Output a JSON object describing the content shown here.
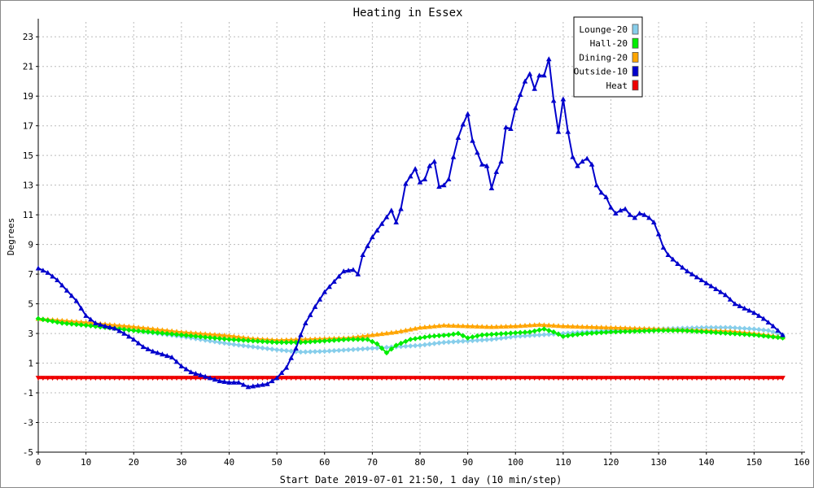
{
  "chart_data": {
    "type": "line",
    "title": "Heating in Essex",
    "xlabel": "Start Date 2019-07-01 21:50, 1 day (10 min/step)",
    "ylabel": "Degrees",
    "xlim": [
      0,
      160
    ],
    "ylim": [
      -5,
      24
    ],
    "xticks": [
      0,
      10,
      20,
      30,
      40,
      50,
      60,
      70,
      80,
      90,
      100,
      110,
      120,
      130,
      140,
      150,
      160
    ],
    "yticks": [
      -5,
      -3,
      -1,
      1,
      3,
      5,
      7,
      9,
      11,
      13,
      15,
      17,
      19,
      21,
      23
    ],
    "grid": true,
    "legend_position": "top-right",
    "series": [
      {
        "name": "Lounge-20",
        "color": "#87ceeb",
        "marker": "diamond",
        "points": [
          [
            0,
            4.0
          ],
          [
            10,
            3.6
          ],
          [
            20,
            3.2
          ],
          [
            30,
            2.8
          ],
          [
            40,
            2.3
          ],
          [
            50,
            1.9
          ],
          [
            55,
            1.75
          ],
          [
            60,
            1.8
          ],
          [
            65,
            1.9
          ],
          [
            70,
            2.0
          ],
          [
            75,
            2.1
          ],
          [
            80,
            2.2
          ],
          [
            85,
            2.4
          ],
          [
            90,
            2.5
          ],
          [
            95,
            2.6
          ],
          [
            100,
            2.8
          ],
          [
            105,
            2.9
          ],
          [
            110,
            3.0
          ],
          [
            115,
            3.1
          ],
          [
            120,
            3.2
          ],
          [
            125,
            3.3
          ],
          [
            130,
            3.3
          ],
          [
            135,
            3.35
          ],
          [
            140,
            3.4
          ],
          [
            145,
            3.4
          ],
          [
            150,
            3.3
          ],
          [
            153,
            3.2
          ],
          [
            156,
            2.9
          ]
        ]
      },
      {
        "name": "Hall-20",
        "color": "#00ee00",
        "marker": "diamond",
        "points": [
          [
            0,
            4.0
          ],
          [
            5,
            3.7
          ],
          [
            10,
            3.55
          ],
          [
            20,
            3.2
          ],
          [
            30,
            2.9
          ],
          [
            40,
            2.6
          ],
          [
            50,
            2.4
          ],
          [
            55,
            2.4
          ],
          [
            60,
            2.5
          ],
          [
            65,
            2.6
          ],
          [
            69,
            2.6
          ],
          [
            71,
            2.3
          ],
          [
            73,
            1.7
          ],
          [
            75,
            2.2
          ],
          [
            78,
            2.6
          ],
          [
            82,
            2.8
          ],
          [
            86,
            2.9
          ],
          [
            88,
            3.0
          ],
          [
            90,
            2.7
          ],
          [
            93,
            2.9
          ],
          [
            98,
            3.0
          ],
          [
            103,
            3.1
          ],
          [
            106,
            3.3
          ],
          [
            108,
            3.1
          ],
          [
            110,
            2.8
          ],
          [
            112,
            2.9
          ],
          [
            115,
            3.0
          ],
          [
            120,
            3.1
          ],
          [
            125,
            3.15
          ],
          [
            130,
            3.2
          ],
          [
            135,
            3.2
          ],
          [
            140,
            3.1
          ],
          [
            145,
            3.0
          ],
          [
            150,
            2.9
          ],
          [
            156,
            2.7
          ]
        ]
      },
      {
        "name": "Dining-20",
        "color": "#ffa500",
        "marker": "triangle",
        "points": [
          [
            0,
            4.0
          ],
          [
            10,
            3.75
          ],
          [
            20,
            3.45
          ],
          [
            30,
            3.1
          ],
          [
            40,
            2.85
          ],
          [
            45,
            2.65
          ],
          [
            50,
            2.55
          ],
          [
            55,
            2.6
          ],
          [
            60,
            2.65
          ],
          [
            65,
            2.7
          ],
          [
            70,
            2.9
          ],
          [
            75,
            3.1
          ],
          [
            80,
            3.4
          ],
          [
            85,
            3.55
          ],
          [
            90,
            3.5
          ],
          [
            95,
            3.45
          ],
          [
            100,
            3.5
          ],
          [
            105,
            3.6
          ],
          [
            110,
            3.5
          ],
          [
            115,
            3.45
          ],
          [
            120,
            3.4
          ],
          [
            125,
            3.35
          ],
          [
            130,
            3.3
          ],
          [
            135,
            3.25
          ],
          [
            140,
            3.2
          ],
          [
            145,
            3.15
          ],
          [
            150,
            3.0
          ],
          [
            156,
            2.75
          ]
        ]
      },
      {
        "name": "Outside-10",
        "color": "#0000cc",
        "marker": "triangle",
        "points": [
          [
            0,
            7.4
          ],
          [
            2,
            7.1
          ],
          [
            4,
            6.6
          ],
          [
            6,
            5.9
          ],
          [
            8,
            5.2
          ],
          [
            10,
            4.2
          ],
          [
            12,
            3.7
          ],
          [
            14,
            3.5
          ],
          [
            16,
            3.35
          ],
          [
            18,
            3.0
          ],
          [
            20,
            2.6
          ],
          [
            22,
            2.1
          ],
          [
            24,
            1.8
          ],
          [
            26,
            1.6
          ],
          [
            28,
            1.4
          ],
          [
            30,
            0.8
          ],
          [
            32,
            0.4
          ],
          [
            34,
            0.2
          ],
          [
            36,
            0.0
          ],
          [
            38,
            -0.2
          ],
          [
            40,
            -0.3
          ],
          [
            42,
            -0.3
          ],
          [
            44,
            -0.6
          ],
          [
            46,
            -0.5
          ],
          [
            48,
            -0.4
          ],
          [
            50,
            0.0
          ],
          [
            52,
            0.7
          ],
          [
            54,
            2.0
          ],
          [
            55,
            2.9
          ],
          [
            56,
            3.7
          ],
          [
            58,
            4.8
          ],
          [
            60,
            5.8
          ],
          [
            62,
            6.5
          ],
          [
            64,
            7.2
          ],
          [
            66,
            7.3
          ],
          [
            67,
            7.0
          ],
          [
            68,
            8.3
          ],
          [
            70,
            9.5
          ],
          [
            72,
            10.4
          ],
          [
            74,
            11.3
          ],
          [
            75,
            10.5
          ],
          [
            76,
            11.4
          ],
          [
            77,
            13.1
          ],
          [
            78,
            13.6
          ],
          [
            79,
            14.1
          ],
          [
            80,
            13.2
          ],
          [
            81,
            13.4
          ],
          [
            82,
            14.3
          ],
          [
            83,
            14.6
          ],
          [
            84,
            12.9
          ],
          [
            85,
            13.0
          ],
          [
            86,
            13.4
          ],
          [
            87,
            14.9
          ],
          [
            88,
            16.2
          ],
          [
            89,
            17.1
          ],
          [
            90,
            17.8
          ],
          [
            91,
            16.0
          ],
          [
            92,
            15.2
          ],
          [
            93,
            14.4
          ],
          [
            94,
            14.3
          ],
          [
            95,
            12.8
          ],
          [
            96,
            13.9
          ],
          [
            97,
            14.6
          ],
          [
            98,
            16.9
          ],
          [
            99,
            16.8
          ],
          [
            100,
            18.2
          ],
          [
            101,
            19.1
          ],
          [
            102,
            20.0
          ],
          [
            103,
            20.5
          ],
          [
            104,
            19.5
          ],
          [
            105,
            20.4
          ],
          [
            106,
            20.4
          ],
          [
            107,
            21.5
          ],
          [
            108,
            18.7
          ],
          [
            109,
            16.6
          ],
          [
            110,
            18.8
          ],
          [
            111,
            16.6
          ],
          [
            112,
            14.9
          ],
          [
            113,
            14.3
          ],
          [
            114,
            14.6
          ],
          [
            115,
            14.8
          ],
          [
            116,
            14.4
          ],
          [
            117,
            13.0
          ],
          [
            118,
            12.5
          ],
          [
            119,
            12.2
          ],
          [
            120,
            11.5
          ],
          [
            121,
            11.1
          ],
          [
            122,
            11.3
          ],
          [
            123,
            11.4
          ],
          [
            124,
            11.0
          ],
          [
            125,
            10.8
          ],
          [
            126,
            11.1
          ],
          [
            127,
            11.0
          ],
          [
            128,
            10.8
          ],
          [
            129,
            10.5
          ],
          [
            130,
            9.7
          ],
          [
            131,
            8.8
          ],
          [
            132,
            8.3
          ],
          [
            134,
            7.7
          ],
          [
            136,
            7.2
          ],
          [
            138,
            6.8
          ],
          [
            140,
            6.4
          ],
          [
            142,
            6.0
          ],
          [
            144,
            5.6
          ],
          [
            146,
            5.0
          ],
          [
            148,
            4.7
          ],
          [
            150,
            4.4
          ],
          [
            152,
            4.0
          ],
          [
            154,
            3.5
          ],
          [
            156,
            2.9
          ]
        ]
      },
      {
        "name": "Heat",
        "color": "#ee0000",
        "marker": "triangle-down",
        "points": [
          [
            0,
            0.0
          ],
          [
            156,
            0.0
          ]
        ]
      }
    ]
  }
}
